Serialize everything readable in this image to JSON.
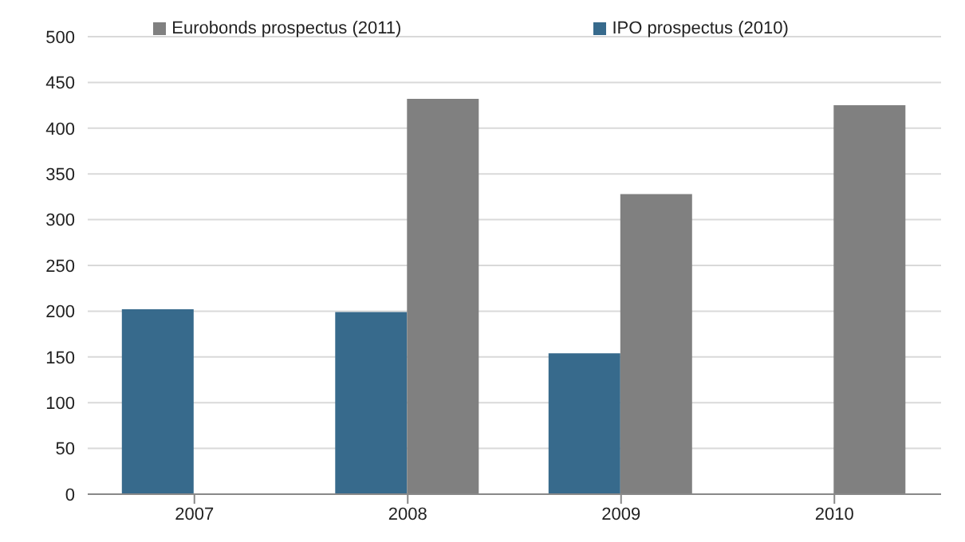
{
  "chart_data": {
    "type": "bar",
    "categories": [
      "2007",
      "2008",
      "2009",
      "2010"
    ],
    "series": [
      {
        "name": "IPO prospectus (2010)",
        "color": "#376a8c",
        "values": [
          202,
          199,
          154,
          null
        ]
      },
      {
        "name": "Eurobonds prospectus (2011)",
        "color": "#808080",
        "values": [
          null,
          432,
          328,
          425
        ]
      }
    ],
    "ylim": [
      0,
      500
    ],
    "yticks": [
      0,
      50,
      100,
      150,
      200,
      250,
      300,
      350,
      400,
      450,
      500
    ],
    "grid": "y",
    "legend": "top"
  }
}
